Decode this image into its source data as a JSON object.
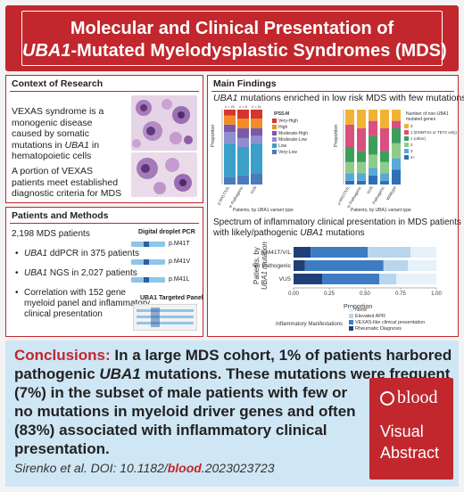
{
  "header": {
    "title_line1": "Molecular and Clinical Presentation of",
    "title_line2_italic": "UBA1",
    "title_line2_rest": "-Mutated Myelodysplastic Syndromes (MDS)"
  },
  "context": {
    "title": "Context of Research",
    "p1": [
      "VEXAS syndrome is a",
      "monogenic disease",
      "caused by somatic",
      "mutations in ",
      "UBA1",
      " in",
      "hematopoietic cells"
    ],
    "p2": [
      "A portion of VEXAS",
      "patients meet established",
      "diagnostic criteria for MDS"
    ]
  },
  "methods": {
    "title": "Patients and Methods",
    "total": "2,198 MDS patients",
    "b1_gene": "UBA1",
    "b1_rest": " ddPCR in 375 patients",
    "b2_gene": "UBA1",
    "b2_rest": " NGS in 2,027 patients",
    "b3": [
      "Correlation with 152 gene",
      "myeloid panel and inflammatory",
      "clinical presentation"
    ],
    "ddpcr_label": "Digital droplet PCR",
    "variants": [
      "p.M41T",
      "p.M41V",
      "p.M41L"
    ],
    "panel_label": "UBA1 Targeted Panel"
  },
  "findings": {
    "title": "Main Findings",
    "sub1_gene": "UBA1",
    "sub1_rest": " mutations enriched in low risk MDS with few mutations",
    "chart1_ylabel": "Proportion",
    "chart1_n_labels": [
      "n = 20",
      "n = 8",
      "n = 11"
    ],
    "chart1_legend_title": "IPSS-M",
    "chart1_xlabel": "Patients, by UBA1 variant type",
    "chart2_legend_title": [
      "Number of non-UBA1",
      "mutated genes"
    ],
    "chart2_xlabel": "Patients, by UBA1 variant type",
    "sub2_line1": "Spectrum of inflammatory clinical presentation in MDS patients",
    "sub2_line2_prefix": "with likely/pathogenic ",
    "sub2_line2_gene": "UBA1",
    "sub2_line2_suffix": " mutations",
    "chart3_ylabel_line1": "Patients, by",
    "chart3_ylabel_line2": "UBA1 mutation",
    "chart3_xlabel": "Proportion",
    "chart3_legend_title": "Inflammatory Manifestations"
  },
  "conclusion": {
    "label": "Conclusions:",
    "line1_rest": " In a large MDS cohort, 1% of patients harbored",
    "line2_a": "pathogenic ",
    "line2_gene": "UBA1",
    "line2_b": " mutations. These mutations were frequent",
    "line3": "(7%) in the subset of male patients with few or",
    "line4": "no mutations in myeloid driver genes and often",
    "line5": "(83%) associated with inflammatory clinical",
    "line6": "presentation.",
    "cite_prefix": "Sirenko et al. DOI: 10.1182/",
    "cite_journal": "blood",
    "cite_suffix": ".2023023723"
  },
  "logo": {
    "brand": "blood",
    "line1": "Visual",
    "line2": "Abstract"
  },
  "colors": {
    "accent": "#c1272d",
    "conclusion_bg": "#cfe6f5"
  },
  "chart_data": [
    {
      "type": "bar",
      "stacked": true,
      "ylabel": "Proportion",
      "xlabel": "Patients, by UBA1 variant type",
      "categories": [
        "p.M41T/V/L",
        "Other Pathogenic",
        "VUS"
      ],
      "n_labels": [
        "n = 20",
        "n = 8",
        "n = 11"
      ],
      "legend_title": "IPSS-M",
      "legend_position": "right",
      "series": [
        {
          "name": "Very-Low",
          "color": "#4a7bbd",
          "values": [
            0.1,
            0.12,
            0.15
          ]
        },
        {
          "name": "Low",
          "color": "#3aa0c8",
          "values": [
            0.45,
            0.38,
            0.4
          ]
        },
        {
          "name": "Moderate-Low",
          "color": "#8e8ed0",
          "values": [
            0.15,
            0.12,
            0.1
          ]
        },
        {
          "name": "Moderate-High",
          "color": "#7a5aa8",
          "values": [
            0.1,
            0.13,
            0.1
          ]
        },
        {
          "name": "High",
          "color": "#f28c28",
          "values": [
            0.12,
            0.13,
            0.13
          ]
        },
        {
          "name": "Very-High",
          "color": "#d7342f",
          "values": [
            0.08,
            0.12,
            0.12
          ]
        }
      ]
    },
    {
      "type": "bar",
      "stacked": true,
      "ylabel": "Proportion",
      "xlabel": "Patients, by UBA1 variant type",
      "categories": [
        "p.M41T/V/L",
        "Other Pathogenic",
        "VUS",
        "Pathogenic",
        "Wildtype"
      ],
      "legend_title": "Number of non-UBA1 mutated genes",
      "legend_position": "right",
      "series": [
        {
          "name": "4+",
          "color": "#2f6fb5",
          "values": [
            0.05,
            0.05,
            0.12,
            0.05,
            0.2
          ]
        },
        {
          "name": "3",
          "color": "#59a9d8",
          "values": [
            0.1,
            0.1,
            0.1,
            0.1,
            0.15
          ]
        },
        {
          "name": "2",
          "color": "#8fcb8a",
          "values": [
            0.15,
            0.15,
            0.18,
            0.15,
            0.2
          ]
        },
        {
          "name": "1 (other)",
          "color": "#3b9e5b",
          "values": [
            0.2,
            0.15,
            0.25,
            0.15,
            0.2
          ]
        },
        {
          "name": "1 (DNMT3A or TET2 only)",
          "color": "#d94f80",
          "values": [
            0.3,
            0.3,
            0.2,
            0.3,
            0.1
          ]
        },
        {
          "name": "0",
          "color": "#f2b233",
          "values": [
            0.2,
            0.25,
            0.15,
            0.25,
            0.15
          ]
        }
      ]
    },
    {
      "type": "bar",
      "orientation": "horizontal",
      "stacked": true,
      "xlabel": "Proportion",
      "ylabel": "Patients, by UBA1 mutation",
      "xlim": [
        0,
        1
      ],
      "x_ticks": [
        "0.00",
        "0.25",
        "0.50",
        "0.75",
        "1.00"
      ],
      "categories": [
        "p.M41T/V/L",
        "Other Pathogenic",
        "VUS"
      ],
      "legend_title": "Inflammatory Manifestations",
      "legend_position": "bottom",
      "series": [
        {
          "name": "Rheumatic Diagnosis",
          "color": "#1f3f78",
          "values": [
            0.12,
            0.08,
            0.2
          ]
        },
        {
          "name": "VEXAS-like clinical presentation",
          "color": "#3d7cc2",
          "values": [
            0.4,
            0.55,
            0.4
          ]
        },
        {
          "name": "Elevated APR",
          "color": "#b8d6ee",
          "values": [
            0.3,
            0.17,
            0.12
          ]
        },
        {
          "name": "None",
          "color": "#e7f1fa",
          "values": [
            0.18,
            0.2,
            0.28
          ]
        }
      ]
    }
  ]
}
